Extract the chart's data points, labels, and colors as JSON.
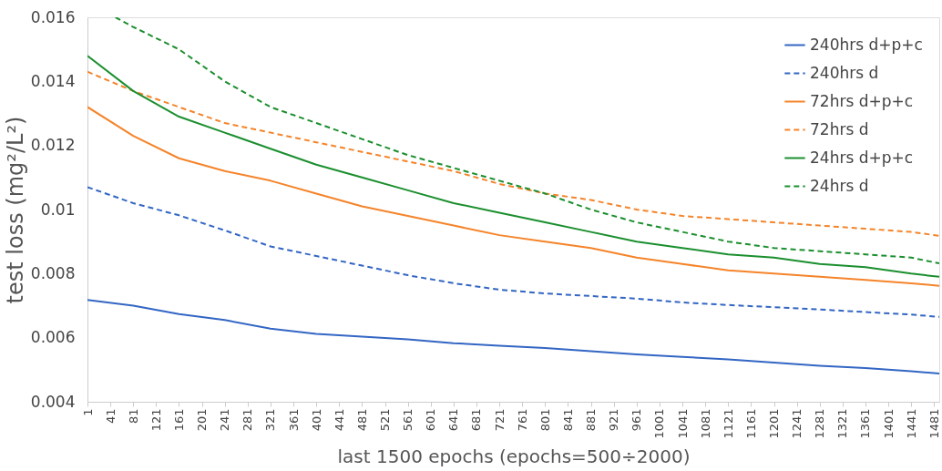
{
  "chart_data": {
    "type": "line",
    "xlabel": "last 1500 epochs (epochs=500÷2000)",
    "ylabel": "test loss  (mg²/L²)",
    "x": [
      1,
      81,
      161,
      241,
      321,
      401,
      481,
      561,
      641,
      721,
      801,
      881,
      961,
      1041,
      1121,
      1201,
      1281,
      1361,
      1441,
      1490
    ],
    "xlim": [
      1,
      1490
    ],
    "xticks": [
      1,
      41,
      81,
      121,
      161,
      201,
      241,
      281,
      321,
      361,
      401,
      441,
      481,
      521,
      561,
      601,
      641,
      681,
      721,
      761,
      801,
      841,
      881,
      921,
      961,
      1001,
      1041,
      1081,
      1121,
      1161,
      1201,
      1241,
      1281,
      1321,
      1361,
      1401,
      1441,
      1481
    ],
    "ylim": [
      0.004,
      0.016
    ],
    "yticks": [
      0.004,
      0.006,
      0.008,
      0.01,
      0.012,
      0.014,
      0.016
    ],
    "grid": false,
    "legend": "top right",
    "series": [
      {
        "name": "240hrs d+p+c",
        "color": "#3366c4",
        "line_style": "solid",
        "values": [
          0.00718,
          0.007,
          0.00674,
          0.00655,
          0.00628,
          0.00612,
          0.00603,
          0.00595,
          0.00583,
          0.00575,
          0.00568,
          0.00558,
          0.00548,
          0.0054,
          0.00532,
          0.00522,
          0.00512,
          0.00505,
          0.00495,
          0.00488
        ]
      },
      {
        "name": "240hrs d",
        "color": "#3366c4",
        "line_style": "dashed",
        "values": [
          0.0107,
          0.0102,
          0.00982,
          0.00935,
          0.00885,
          0.00855,
          0.00825,
          0.00795,
          0.0077,
          0.0075,
          0.00738,
          0.0073,
          0.00722,
          0.0071,
          0.00702,
          0.00695,
          0.00688,
          0.0068,
          0.00672,
          0.00665
        ]
      },
      {
        "name": "72hrs d+p+c",
        "color": "#f5842a",
        "line_style": "solid",
        "values": [
          0.0132,
          0.0123,
          0.0116,
          0.0112,
          0.0109,
          0.0105,
          0.0101,
          0.0098,
          0.0095,
          0.0092,
          0.009,
          0.0088,
          0.0085,
          0.0083,
          0.0081,
          0.008,
          0.0079,
          0.0078,
          0.0077,
          0.00762
        ]
      },
      {
        "name": "72hrs d",
        "color": "#f5842a",
        "line_style": "dashed",
        "values": [
          0.0143,
          0.0137,
          0.0132,
          0.0127,
          0.0124,
          0.0121,
          0.0118,
          0.0115,
          0.0112,
          0.0108,
          0.0105,
          0.0103,
          0.01,
          0.0098,
          0.0097,
          0.0096,
          0.0095,
          0.0094,
          0.0093,
          0.00918
        ]
      },
      {
        "name": "24hrs d+p+c",
        "color": "#1b8f2e",
        "line_style": "solid",
        "values": [
          0.0148,
          0.0137,
          0.0129,
          0.0124,
          0.0119,
          0.0114,
          0.011,
          0.0106,
          0.0102,
          0.0099,
          0.0096,
          0.0093,
          0.009,
          0.0088,
          0.0086,
          0.0085,
          0.0083,
          0.0082,
          0.008,
          0.0079
        ]
      },
      {
        "name": "24hrs d",
        "color": "#1b8f2e",
        "line_style": "dashed",
        "x": [
          50,
          81,
          161,
          241,
          321,
          401,
          481,
          561,
          641,
          721,
          801,
          881,
          961,
          1041,
          1121,
          1201,
          1281,
          1361,
          1441,
          1490
        ],
        "values": [
          0.016,
          0.0157,
          0.015,
          0.014,
          0.0132,
          0.0127,
          0.0122,
          0.0117,
          0.0113,
          0.0109,
          0.0105,
          0.01,
          0.0096,
          0.0093,
          0.009,
          0.0088,
          0.0087,
          0.0086,
          0.0085,
          0.00832
        ]
      }
    ]
  }
}
